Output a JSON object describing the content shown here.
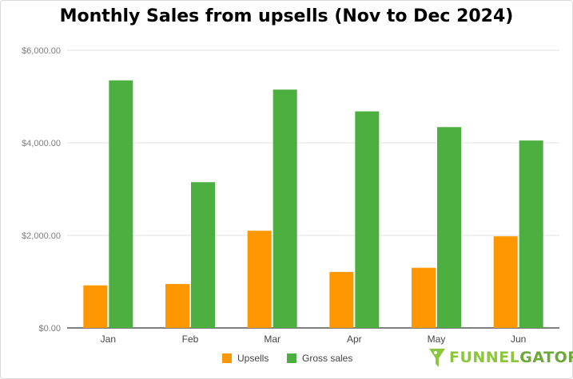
{
  "colors": {
    "upsells": "#ff9800",
    "gross": "#4caf3f",
    "grid": "#e0e0e0",
    "logo_green": "#8cc63f"
  },
  "logo": {
    "part1": "FUNNEL",
    "part2": "GATOR",
    "icon": "gator-icon"
  },
  "chart_data": {
    "type": "bar",
    "title": "Monthly Sales from upsells (Nov to Dec 2024)",
    "xlabel": "",
    "ylabel": "",
    "categories": [
      "Jan",
      "Feb",
      "Mar",
      "Apr",
      "May",
      "Jun"
    ],
    "series": [
      {
        "name": "Upsells",
        "values": [
          920,
          950,
          2100,
          1210,
          1300,
          1980
        ]
      },
      {
        "name": "Gross sales",
        "values": [
          5350,
          3150,
          5150,
          4680,
          4340,
          4050
        ]
      }
    ],
    "ylim": [
      0,
      6000
    ],
    "yticks": [
      "$0.00",
      "$2,000.00",
      "$4,000.00",
      "$6,000.00"
    ],
    "grid": true,
    "legend": "bottom"
  }
}
